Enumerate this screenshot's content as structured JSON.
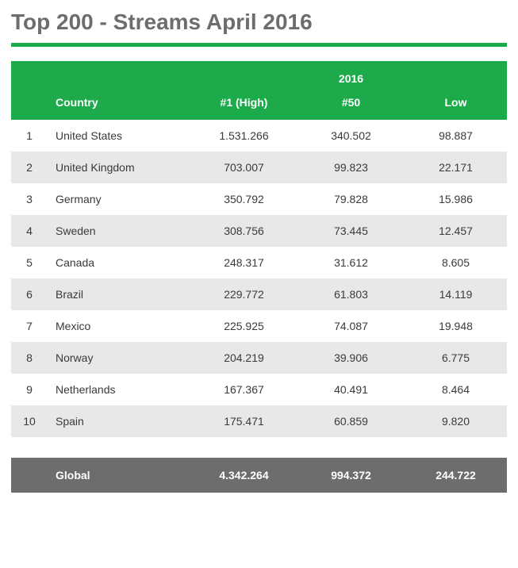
{
  "title": "Top 200 - Streams April 2016",
  "table": {
    "super_header": "2016",
    "columns": {
      "rank": "",
      "country": "Country",
      "high": "#1 (High)",
      "mid": "#50",
      "low": "Low"
    },
    "rows": [
      {
        "rank": "1",
        "country": "United States",
        "high": "1.531.266",
        "mid": "340.502",
        "low": "98.887"
      },
      {
        "rank": "2",
        "country": "United Kingdom",
        "high": "703.007",
        "mid": "99.823",
        "low": "22.171"
      },
      {
        "rank": "3",
        "country": "Germany",
        "high": "350.792",
        "mid": "79.828",
        "low": "15.986"
      },
      {
        "rank": "4",
        "country": "Sweden",
        "high": "308.756",
        "mid": "73.445",
        "low": "12.457"
      },
      {
        "rank": "5",
        "country": "Canada",
        "high": "248.317",
        "mid": "31.612",
        "low": "8.605"
      },
      {
        "rank": "6",
        "country": "Brazil",
        "high": "229.772",
        "mid": "61.803",
        "low": "14.119"
      },
      {
        "rank": "7",
        "country": "Mexico",
        "high": "225.925",
        "mid": "74.087",
        "low": "19.948"
      },
      {
        "rank": "8",
        "country": "Norway",
        "high": "204.219",
        "mid": "39.906",
        "low": "6.775"
      },
      {
        "rank": "9",
        "country": "Netherlands",
        "high": "167.367",
        "mid": "40.491",
        "low": "8.464"
      },
      {
        "rank": "10",
        "country": "Spain",
        "high": "175.471",
        "mid": "60.859",
        "low": "9.820"
      }
    ],
    "summary": {
      "label": "Global",
      "high": "4.342.264",
      "mid": "994.372",
      "low": "244.722"
    }
  },
  "styles": {
    "accent_color": "#1daa4b",
    "title_color": "#6d6d6d",
    "stripe_color": "#e8e8e8",
    "summary_bg": "#6d6d6d",
    "text_color": "#3a3a3a",
    "title_fontsize": 28,
    "body_fontsize": 14
  }
}
